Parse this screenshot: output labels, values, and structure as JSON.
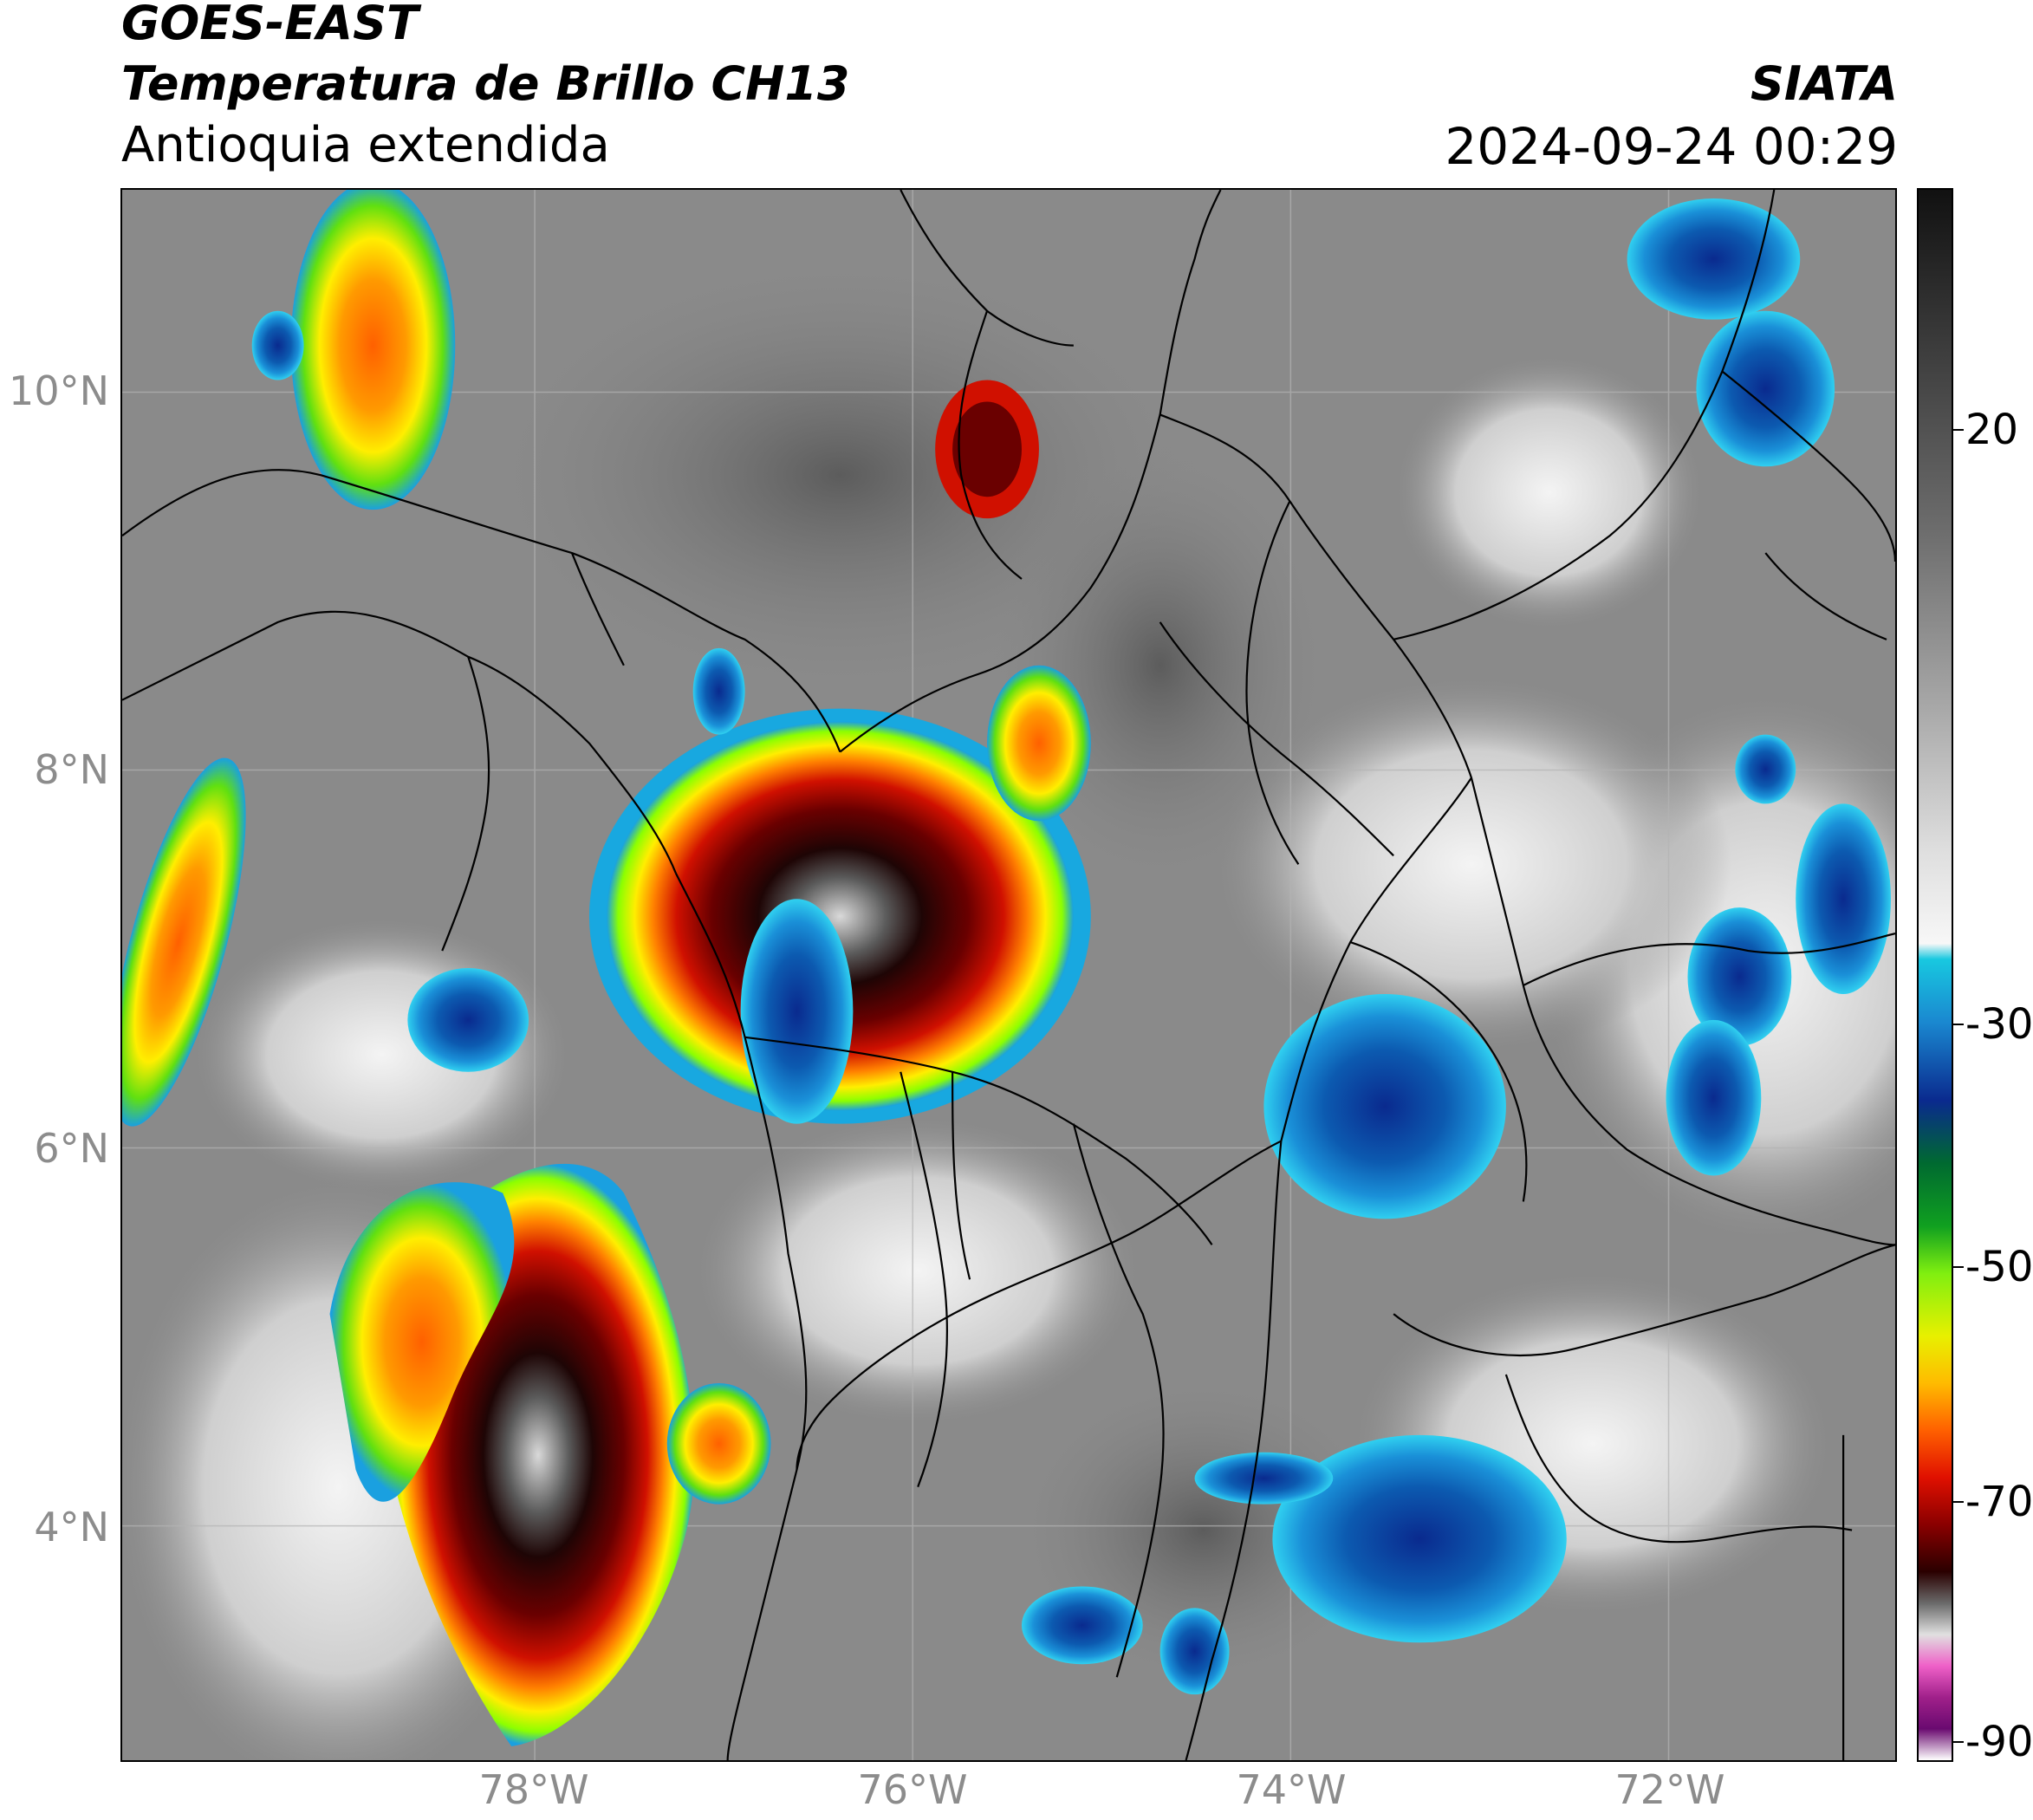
{
  "header": {
    "satellite": "GOES-EAST",
    "product": "Temperatura de Brillo CH13",
    "region": "Antioquia extendida",
    "organization": "SIATA",
    "timestamp": "2024-09-24 00:29"
  },
  "map": {
    "lat_labels": [
      "10°N",
      "8°N",
      "6°N",
      "4°N"
    ],
    "lon_labels": [
      "78°W",
      "76°W",
      "74°W",
      "72°W"
    ],
    "gridlines": true,
    "background_color": "#8a8a8a",
    "border_color": "#000000"
  },
  "colorbar": {
    "labels": [
      "20",
      "-30",
      "-50",
      "-70",
      "-90"
    ],
    "gradient_stops": [
      "#111111",
      "#3c3c3c",
      "#6e6e6e",
      "#a8a8a8",
      "#dedede",
      "#f7f7f7",
      "#18c8e0",
      "#1a88d0",
      "#0a2a8e",
      "#006a30",
      "#10a020",
      "#80ef10",
      "#e8f000",
      "#ffbb00",
      "#ff6000",
      "#e01000",
      "#8a0000",
      "#2a0000",
      "#6a6a6a",
      "#e0e0e0",
      "#ef60c8",
      "#a0208a",
      "#6a0a70",
      "#ffffff"
    ]
  },
  "storm_colors": [
    "#8cff00",
    "#ffee00",
    "#ff8000",
    "#d01000",
    "#6a0000",
    "#1e0505",
    "#7a7a7a",
    "#d9d9d9"
  ]
}
